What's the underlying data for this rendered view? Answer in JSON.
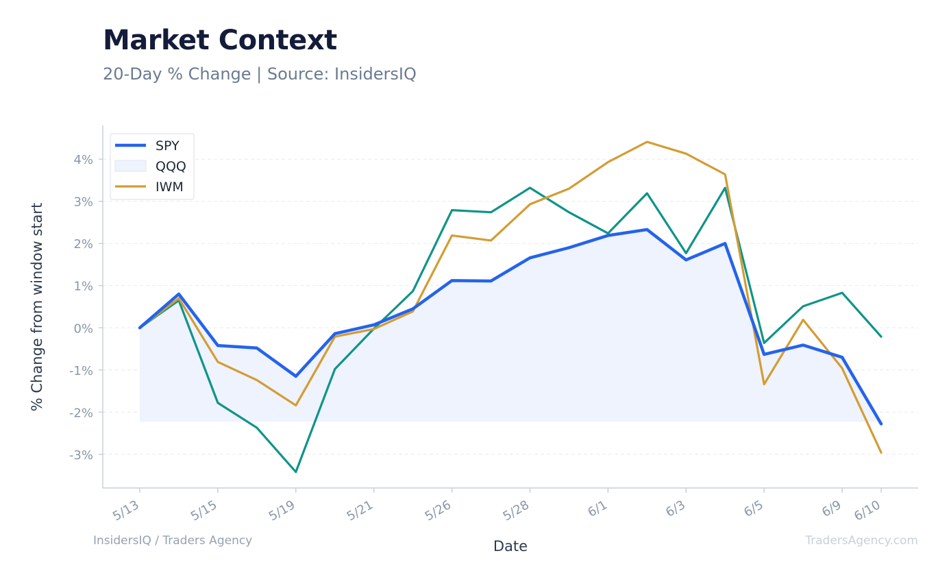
{
  "header": {
    "title": "Market Context",
    "subtitle": "20-Day % Change | Source: InsidersIQ"
  },
  "footer": {
    "left": "InsidersIQ / Traders Agency",
    "right": "TradersAgency.com"
  },
  "chart_data": {
    "type": "line",
    "xlabel": "Date",
    "ylabel": "% Change from window start",
    "ylim": [
      -3.8,
      4.8
    ],
    "yticks": [
      -3,
      -2,
      -1,
      0,
      1,
      2,
      3,
      4
    ],
    "ytick_labels": [
      "-3%",
      "-2%",
      "-1%",
      "0%",
      "1%",
      "2%",
      "3%",
      "4%"
    ],
    "grid": true,
    "legend_position": "top-left",
    "x": [
      "5/13",
      "5/14",
      "5/15",
      "5/16",
      "5/19",
      "5/20",
      "5/21",
      "5/22",
      "5/26",
      "5/27",
      "5/28",
      "5/29",
      "6/1",
      "6/2",
      "6/3",
      "6/4",
      "6/5",
      "6/6",
      "6/9",
      "6/10"
    ],
    "xtick_labels": [
      "5/13",
      "5/15",
      "5/19",
      "5/21",
      "5/26",
      "5/28",
      "6/1",
      "6/3",
      "6/5",
      "6/9",
      "6/10"
    ],
    "xtick_indices": [
      0,
      2,
      4,
      6,
      8,
      10,
      12,
      14,
      16,
      18,
      19
    ],
    "series": [
      {
        "name": "SPY",
        "color": "#2563eb",
        "values": [
          0.0,
          0.8,
          -0.42,
          -0.48,
          -1.15,
          -0.14,
          0.07,
          0.45,
          1.12,
          1.11,
          1.66,
          1.9,
          2.19,
          2.33,
          1.61,
          2.0,
          -0.63,
          -0.41,
          -0.7,
          -2.28
        ]
      },
      {
        "name": "QQQ",
        "color": "#0f9488",
        "legend_fill": "#eef3fd",
        "values": [
          0.0,
          0.65,
          -1.78,
          -2.37,
          -3.42,
          -0.98,
          -0.02,
          0.87,
          2.79,
          2.74,
          3.32,
          2.74,
          2.24,
          3.19,
          1.77,
          3.32,
          -0.36,
          0.51,
          0.83,
          -0.21
        ]
      },
      {
        "name": "IWM",
        "color": "#d49c33",
        "values": [
          0.0,
          0.7,
          -0.81,
          -1.24,
          -1.84,
          -0.21,
          -0.03,
          0.39,
          2.19,
          2.07,
          2.93,
          3.3,
          3.93,
          4.41,
          4.13,
          3.64,
          -1.34,
          0.19,
          -0.96,
          -2.96
        ]
      }
    ],
    "area_baseline": -2.23,
    "area_color": "#eef3fd"
  }
}
